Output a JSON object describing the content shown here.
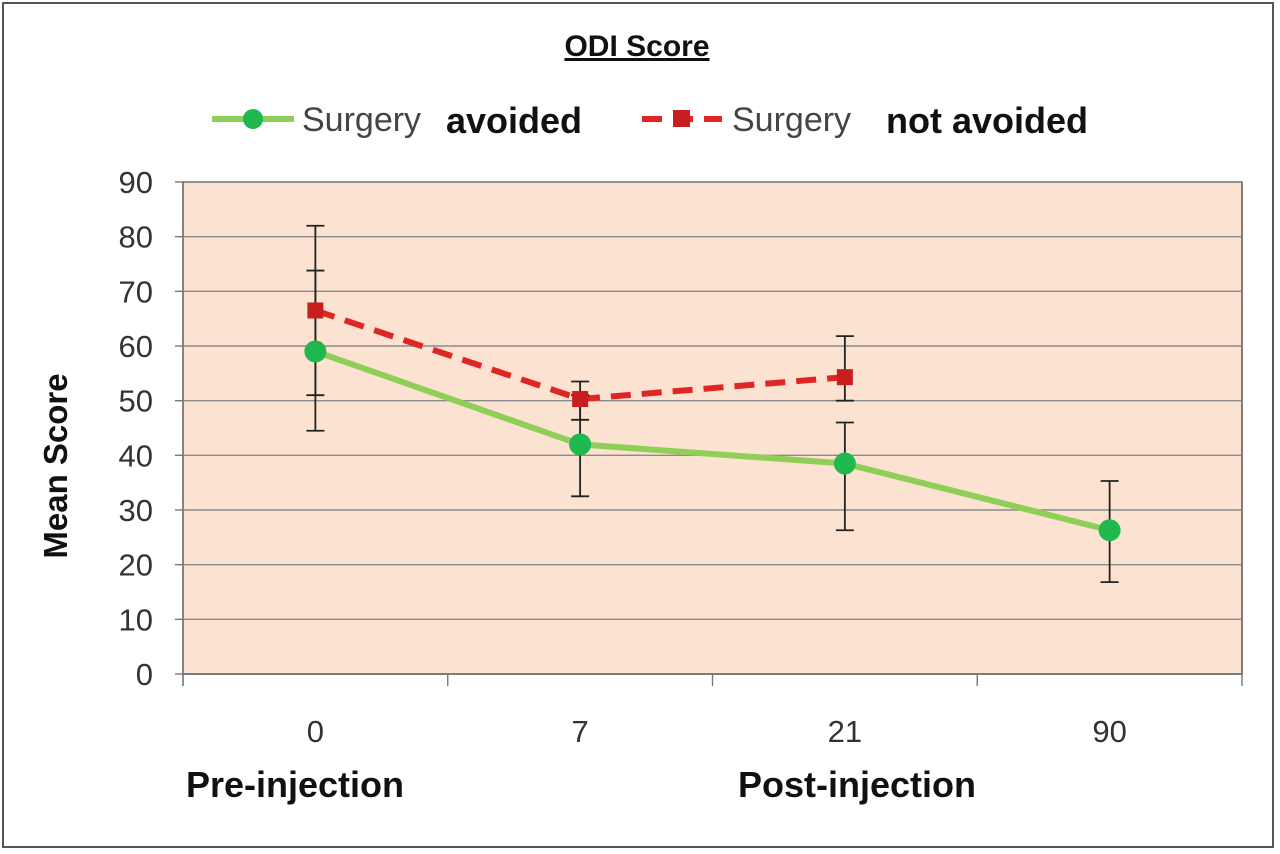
{
  "chart_data": {
    "type": "line",
    "title": "ODI Score",
    "ylabel": "Mean Score",
    "ylim": [
      0,
      90
    ],
    "yticks": [
      "0",
      "10",
      "20",
      "30",
      "40",
      "50",
      "60",
      "70",
      "80",
      "90"
    ],
    "categories": [
      "0",
      "7",
      "21",
      "90"
    ],
    "phase_labels": [
      "Pre-injection",
      "Post-injection"
    ],
    "grid": true,
    "legend_position": "top",
    "series": [
      {
        "name": "Surgery avoided",
        "legend_prefix": "Surgery",
        "legend_suffix": "avoided",
        "color": "#8fce57",
        "marker": "circle",
        "marker_color": "#1fb84f",
        "line_style": "solid",
        "values": [
          59,
          42,
          38.5,
          26.3
        ],
        "error_low": [
          44.5,
          32.5,
          26.3,
          16.8
        ],
        "error_high": [
          73.8,
          51,
          46,
          35.3
        ]
      },
      {
        "name": "Surgery not avoided",
        "legend_prefix": "Surgery",
        "legend_suffix": "not avoided",
        "color": "#e02525",
        "marker": "square",
        "marker_color": "#c81e1e",
        "line_style": "dashed",
        "values": [
          66.5,
          50.3,
          54.3,
          null
        ],
        "error_low": [
          51,
          46.5,
          50,
          null
        ],
        "error_high": [
          82,
          53.5,
          61.8,
          null
        ]
      }
    ]
  }
}
